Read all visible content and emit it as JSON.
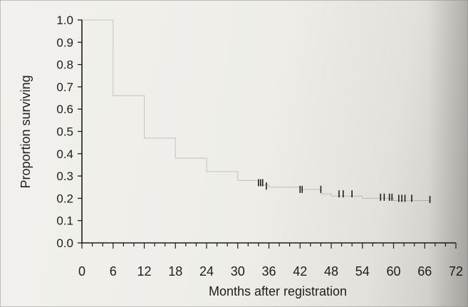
{
  "chart_data": {
    "type": "line",
    "title": "",
    "xlabel": "Months after registration",
    "ylabel": "Proportion surviving",
    "xlim": [
      0,
      72
    ],
    "ylim": [
      0.0,
      1.0
    ],
    "x_ticks": [
      0,
      6,
      12,
      18,
      24,
      30,
      36,
      42,
      48,
      54,
      60,
      66,
      72
    ],
    "x_tick_labels": [
      "0",
      "6",
      "12",
      "18",
      "24",
      "30",
      "36",
      "42",
      "48",
      "54",
      "60",
      "66",
      "72"
    ],
    "x_minor_step": 2,
    "y_ticks": [
      0.0,
      0.1,
      0.2,
      0.3,
      0.4,
      0.5,
      0.6,
      0.7,
      0.8,
      0.9,
      1.0
    ],
    "y_tick_labels": [
      "0.0",
      "0.1",
      "0.2",
      "0.3",
      "0.4",
      "0.5",
      "0.6",
      "0.7",
      "0.8",
      "0.9",
      "1.0"
    ],
    "grid": false,
    "legend": "none",
    "series": [
      {
        "step": true,
        "x": [
          0,
          6,
          12,
          18,
          24,
          30,
          34,
          36,
          42,
          46,
          48,
          54,
          60,
          66,
          67
        ],
        "y": [
          1.0,
          0.66,
          0.47,
          0.38,
          0.32,
          0.28,
          0.26,
          0.25,
          0.24,
          0.22,
          0.21,
          0.2,
          0.19,
          0.19,
          0.19
        ],
        "censored": [
          {
            "x": 34.0,
            "y": 0.27
          },
          {
            "x": 34.4,
            "y": 0.27
          },
          {
            "x": 34.8,
            "y": 0.27
          },
          {
            "x": 35.5,
            "y": 0.255
          },
          {
            "x": 42.0,
            "y": 0.24
          },
          {
            "x": 42.4,
            "y": 0.24
          },
          {
            "x": 46.0,
            "y": 0.24
          },
          {
            "x": 49.5,
            "y": 0.22
          },
          {
            "x": 50.3,
            "y": 0.22
          },
          {
            "x": 52.0,
            "y": 0.22
          },
          {
            "x": 57.5,
            "y": 0.205
          },
          {
            "x": 58.2,
            "y": 0.205
          },
          {
            "x": 59.2,
            "y": 0.205
          },
          {
            "x": 59.7,
            "y": 0.205
          },
          {
            "x": 61.0,
            "y": 0.2
          },
          {
            "x": 61.6,
            "y": 0.2
          },
          {
            "x": 62.2,
            "y": 0.2
          },
          {
            "x": 63.5,
            "y": 0.2
          },
          {
            "x": 67.0,
            "y": 0.195
          }
        ]
      }
    ]
  },
  "colors": {
    "ink": "#1d1d1d",
    "paper": "#f2f1ed",
    "curve": "#2a2a2a"
  }
}
